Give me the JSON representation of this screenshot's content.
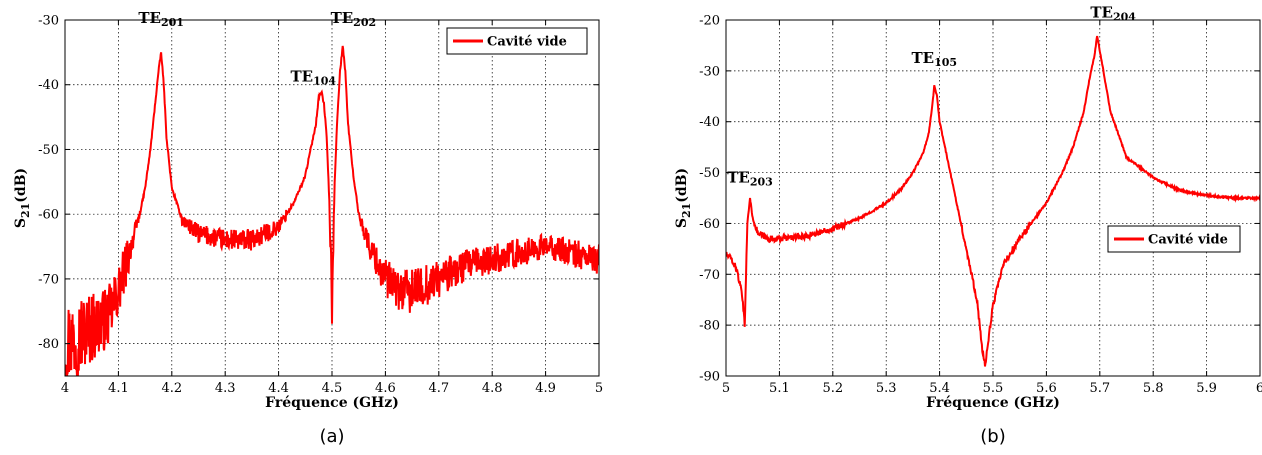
{
  "chart_data": [
    {
      "type": "line",
      "caption": "(a)",
      "xlabel": "Fréquence (GHz)",
      "ylabel": "S21(dB)",
      "ylabel_parts": {
        "base": "S",
        "sub": "21",
        "unit": "(dB)"
      },
      "xlim": [
        4,
        5
      ],
      "ylim": [
        -85,
        -30
      ],
      "xticks": [
        4,
        4.1,
        4.2,
        4.3,
        4.4,
        4.5,
        4.6,
        4.7,
        4.8,
        4.9,
        5
      ],
      "xtick_labels": [
        "4",
        "4.1",
        "4.2",
        "4.3",
        "4.4",
        "4.5",
        "4.6",
        "4.7",
        "4.8",
        "4.9",
        "5"
      ],
      "yticks": [
        -80,
        -70,
        -60,
        -50,
        -40,
        -30
      ],
      "ytick_labels": [
        "-80",
        "-70",
        "-60",
        "-50",
        "-40",
        "-30"
      ],
      "grid": true,
      "legend": "top-right",
      "series": [
        {
          "name": "Cavité vide",
          "color": "#ff0000",
          "x": [
            4.0,
            4.02,
            4.04,
            4.06,
            4.08,
            4.1,
            4.12,
            4.14,
            4.15,
            4.16,
            4.17,
            4.175,
            4.18,
            4.185,
            4.19,
            4.2,
            4.22,
            4.25,
            4.3,
            4.35,
            4.4,
            4.43,
            4.45,
            4.46,
            4.47,
            4.475,
            4.48,
            4.485,
            4.49,
            4.495,
            4.5,
            4.505,
            4.51,
            4.515,
            4.52,
            4.525,
            4.53,
            4.54,
            4.55,
            4.57,
            4.6,
            4.63,
            4.65,
            4.7,
            4.75,
            4.8,
            4.85,
            4.9,
            4.95,
            5.0
          ],
          "y": [
            -80,
            -79,
            -78,
            -77,
            -76,
            -72,
            -66,
            -60,
            -56,
            -50,
            -42,
            -38,
            -35,
            -40,
            -48,
            -56,
            -61,
            -63,
            -64,
            -64,
            -62,
            -58,
            -54,
            -50,
            -46,
            -42,
            -41,
            -43,
            -48,
            -58,
            -74,
            -55,
            -45,
            -38,
            -34,
            -38,
            -46,
            -54,
            -60,
            -65,
            -70,
            -72,
            -72,
            -70,
            -68,
            -67,
            -66,
            -65,
            -66,
            -67
          ]
        }
      ],
      "annotations": [
        {
          "base": "TE",
          "sub": "201",
          "x": 4.18,
          "y": -30.5
        },
        {
          "base": "TE",
          "sub": "104",
          "x": 4.465,
          "y": -39.5
        },
        {
          "base": "TE",
          "sub": "202",
          "x": 4.54,
          "y": -30.5
        }
      ]
    },
    {
      "type": "line",
      "caption": "(b)",
      "xlabel": "Fréquence (GHz)",
      "ylabel": "S21(dB)",
      "ylabel_parts": {
        "base": "S",
        "sub": "21",
        "unit": "(dB)"
      },
      "xlim": [
        5,
        6
      ],
      "ylim": [
        -90,
        -20
      ],
      "xticks": [
        5,
        5.1,
        5.2,
        5.3,
        5.4,
        5.5,
        5.6,
        5.7,
        5.8,
        5.9,
        6
      ],
      "xtick_labels": [
        "5",
        "5.1",
        "5.2",
        "5.3",
        "5.4",
        "5.5",
        "5.6",
        "5.7",
        "5.8",
        "5.9",
        "6"
      ],
      "yticks": [
        -90,
        -80,
        -70,
        -60,
        -50,
        -40,
        -30,
        -20
      ],
      "ytick_labels": [
        "-90",
        "-80",
        "-70",
        "-60",
        "-50",
        "-40",
        "-30",
        "-20"
      ],
      "grid": true,
      "legend": "center-right",
      "series": [
        {
          "name": "Cavité vide",
          "color": "#ff0000",
          "x": [
            5.0,
            5.01,
            5.02,
            5.03,
            5.035,
            5.04,
            5.045,
            5.05,
            5.06,
            5.08,
            5.1,
            5.15,
            5.2,
            5.25,
            5.3,
            5.33,
            5.35,
            5.37,
            5.38,
            5.385,
            5.39,
            5.395,
            5.4,
            5.41,
            5.42,
            5.44,
            5.46,
            5.47,
            5.48,
            5.485,
            5.49,
            5.5,
            5.52,
            5.55,
            5.6,
            5.63,
            5.65,
            5.67,
            5.68,
            5.69,
            5.695,
            5.7,
            5.72,
            5.75,
            5.8,
            5.85,
            5.9,
            5.95,
            6.0
          ],
          "y": [
            -66,
            -67,
            -69,
            -74,
            -80,
            -60,
            -55,
            -59,
            -62,
            -63,
            -63,
            -62.5,
            -61,
            -59,
            -56,
            -53,
            -50,
            -46,
            -42,
            -38,
            -33,
            -35,
            -40,
            -45,
            -50,
            -60,
            -70,
            -75,
            -85,
            -88,
            -84,
            -76,
            -68,
            -63,
            -56,
            -50,
            -45,
            -38,
            -32,
            -27,
            -23,
            -26,
            -38,
            -47,
            -51,
            -53.5,
            -54.5,
            -55,
            -55
          ]
        }
      ],
      "annotations": [
        {
          "base": "TE",
          "sub": "203",
          "x": 5.045,
          "y": -52
        },
        {
          "base": "TE",
          "sub": "105",
          "x": 5.39,
          "y": -28.5
        },
        {
          "base": "TE",
          "sub": "204",
          "x": 5.725,
          "y": -19.5
        }
      ]
    }
  ]
}
